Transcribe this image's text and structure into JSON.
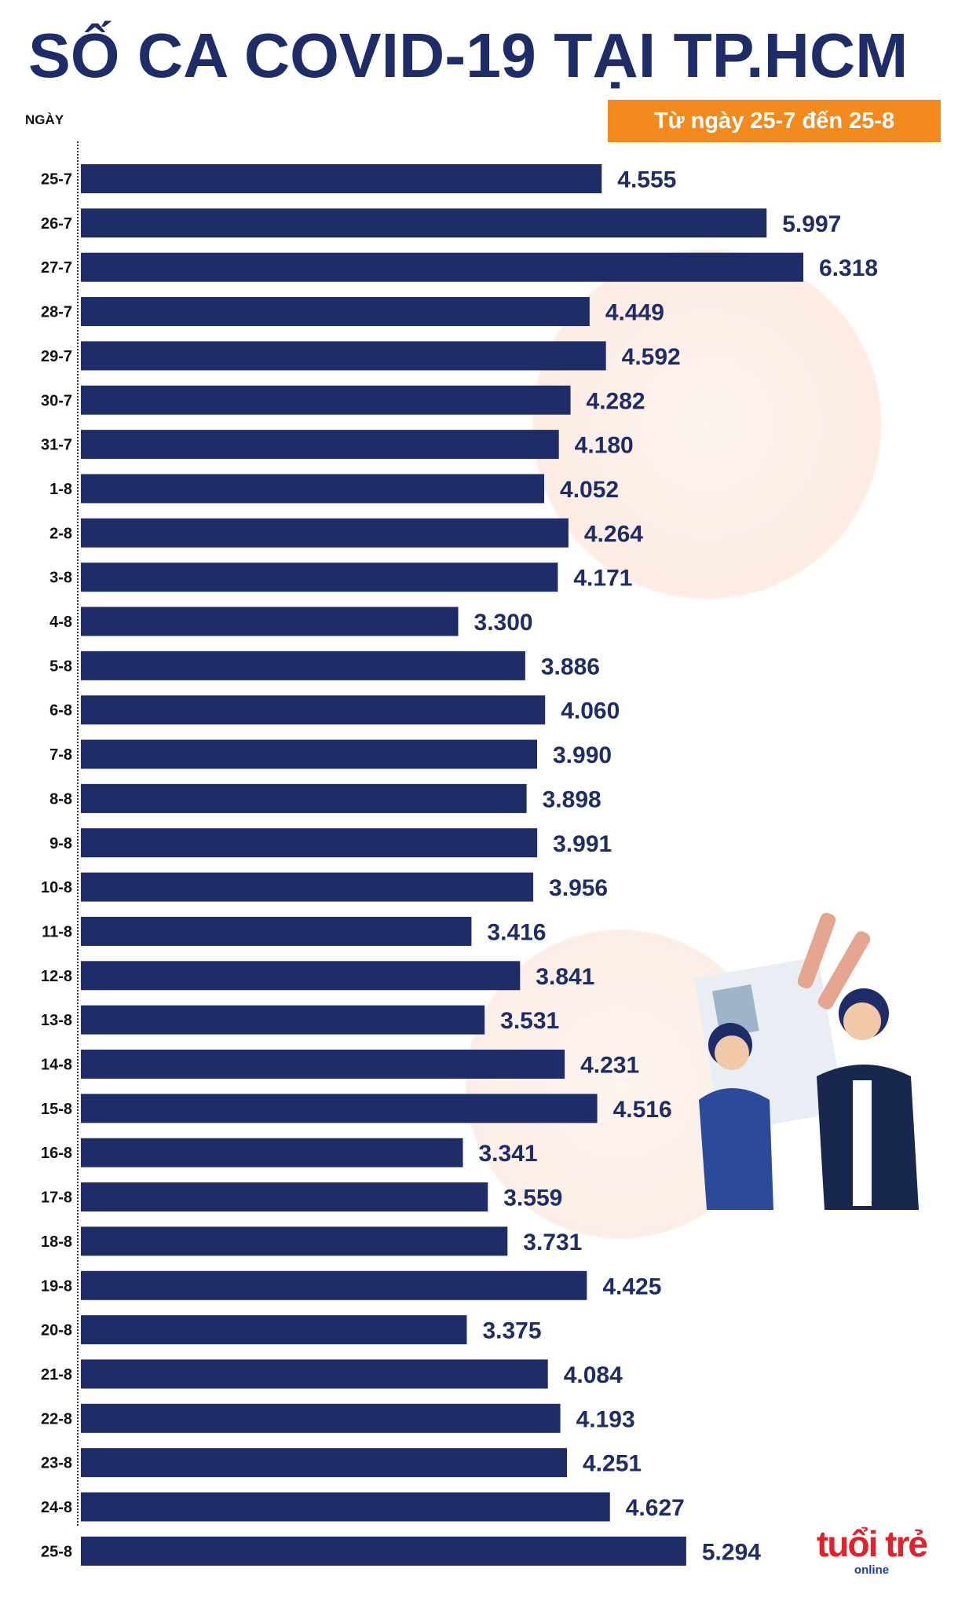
{
  "chart_data": {
    "type": "bar",
    "orientation": "horizontal",
    "title": "SỐ CA COVID-19 TẠI TP.HCM",
    "subtitle": "Từ ngày 25-7 đến 25-8",
    "ylabel": "NGÀY",
    "categories": [
      "25-7",
      "26-7",
      "27-7",
      "28-7",
      "29-7",
      "30-7",
      "31-7",
      "1-8",
      "2-8",
      "3-8",
      "4-8",
      "5-8",
      "6-8",
      "7-8",
      "8-8",
      "9-8",
      "10-8",
      "11-8",
      "12-8",
      "13-8",
      "14-8",
      "15-8",
      "16-8",
      "17-8",
      "18-8",
      "19-8",
      "20-8",
      "21-8",
      "22-8",
      "23-8",
      "24-8",
      "25-8"
    ],
    "values": [
      4555,
      5997,
      6318,
      4449,
      4592,
      4282,
      4180,
      4052,
      4264,
      4171,
      3300,
      3886,
      4060,
      3990,
      3898,
      3991,
      3956,
      3416,
      3841,
      3531,
      4231,
      4516,
      3341,
      3559,
      3731,
      4425,
      3375,
      4084,
      4193,
      4251,
      4627,
      5294
    ],
    "value_labels": [
      "4.555",
      "5.997",
      "6.318",
      "4.449",
      "4.592",
      "4.282",
      "4.180",
      "4.052",
      "4.264",
      "4.171",
      "3.300",
      "3.886",
      "4.060",
      "3.990",
      "3.898",
      "3.991",
      "3.956",
      "3.416",
      "3.841",
      "3.531",
      "4.231",
      "4.516",
      "3.341",
      "3.559",
      "3.731",
      "4.425",
      "3.375",
      "4.084",
      "4.193",
      "4.251",
      "4.627",
      "5.294"
    ],
    "grid": false,
    "colors": {
      "bar": "#1e2c68",
      "label": "#1e2c68",
      "subtitle_bg": "#f28a1e",
      "decoration": "#fbe6dc"
    }
  },
  "logo": {
    "text": "tuổi trẻ",
    "sub": "online"
  }
}
